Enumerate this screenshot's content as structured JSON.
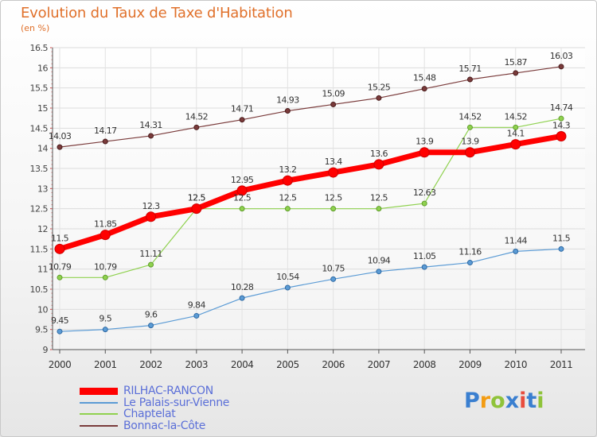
{
  "header": {
    "title": "Evolution du Taux de Taxe d'Habitation",
    "subtitle": "(en %)"
  },
  "logo": {
    "text": "Proxiti",
    "colors": [
      "#3a7fd0",
      "#f39c12",
      "#8fc33a",
      "#3a7fd0",
      "#e84c3d",
      "#3a7fd0",
      "#8fc33a"
    ]
  },
  "chart_data": {
    "type": "line",
    "title": "Evolution du Taux de Taxe d'Habitation",
    "subtitle": "(en %)",
    "xlabel": "",
    "ylabel": "",
    "ylim": [
      9,
      16.5
    ],
    "y_ticks": [
      9,
      9.5,
      10,
      10.5,
      11,
      11.5,
      12,
      12.5,
      13,
      13.5,
      14,
      14.5,
      15,
      15.5,
      16,
      16.5
    ],
    "y_tick_labels": [
      "9",
      "9.5",
      "10",
      "10.5",
      "11",
      "11.5",
      "12",
      "12.5",
      "13",
      "13.5",
      "14",
      "14.5",
      "15",
      "15.5",
      "16",
      "16.5"
    ],
    "categories": [
      "2000",
      "2001",
      "2002",
      "2003",
      "2004",
      "2005",
      "2006",
      "2007",
      "2008",
      "2009",
      "2010",
      "2011"
    ],
    "grid": true,
    "legend_position": "bottom-left",
    "series": [
      {
        "name": "RILHAC-RANCON",
        "color": "#ff0000",
        "marker_stroke": "#cc0000",
        "values": [
          11.5,
          11.85,
          12.3,
          12.5,
          12.95,
          13.2,
          13.4,
          13.6,
          13.9,
          13.9,
          14.1,
          14.3
        ],
        "labels": [
          "11.5",
          "11.85",
          "12.3",
          "12.5",
          "12.95",
          "13.2",
          "13.4",
          "13.6",
          "13.9",
          "13.9",
          "14.1",
          "14.3"
        ]
      },
      {
        "name": "Le Palais-sur-Vienne",
        "color": "#5b9bd5",
        "marker_stroke": "#2f6aa3",
        "values": [
          9.45,
          9.5,
          9.6,
          9.84,
          10.28,
          10.54,
          10.75,
          10.94,
          11.05,
          11.16,
          11.44,
          11.5
        ],
        "labels": [
          "9.45",
          "9.5",
          "9.6",
          "9.84",
          "10.28",
          "10.54",
          "10.75",
          "10.94",
          "11.05",
          "11.16",
          "11.44",
          "11.5"
        ]
      },
      {
        "name": "Chaptelat",
        "color": "#8fd14f",
        "marker_stroke": "#5f9e2a",
        "values": [
          10.79,
          10.79,
          11.11,
          12.5,
          12.5,
          12.5,
          12.5,
          12.5,
          12.63,
          14.52,
          14.52,
          14.74
        ],
        "labels": [
          "10.79",
          "10.79",
          "11.11",
          "12.5",
          "12.5",
          "12.5",
          "12.5",
          "12.5",
          "12.63",
          "14.52",
          "14.52",
          "14.74"
        ]
      },
      {
        "name": "Bonnac-la-Côte",
        "color": "#7a3b3b",
        "marker_stroke": "#4a1c1c",
        "values": [
          14.03,
          14.17,
          14.31,
          14.52,
          14.71,
          14.93,
          15.09,
          15.25,
          15.48,
          15.71,
          15.87,
          16.03
        ],
        "labels": [
          "14.03",
          "14.17",
          "14.31",
          "14.52",
          "14.71",
          "14.93",
          "15.09",
          "15.25",
          "15.48",
          "15.71",
          "15.87",
          "16.03"
        ]
      }
    ]
  }
}
